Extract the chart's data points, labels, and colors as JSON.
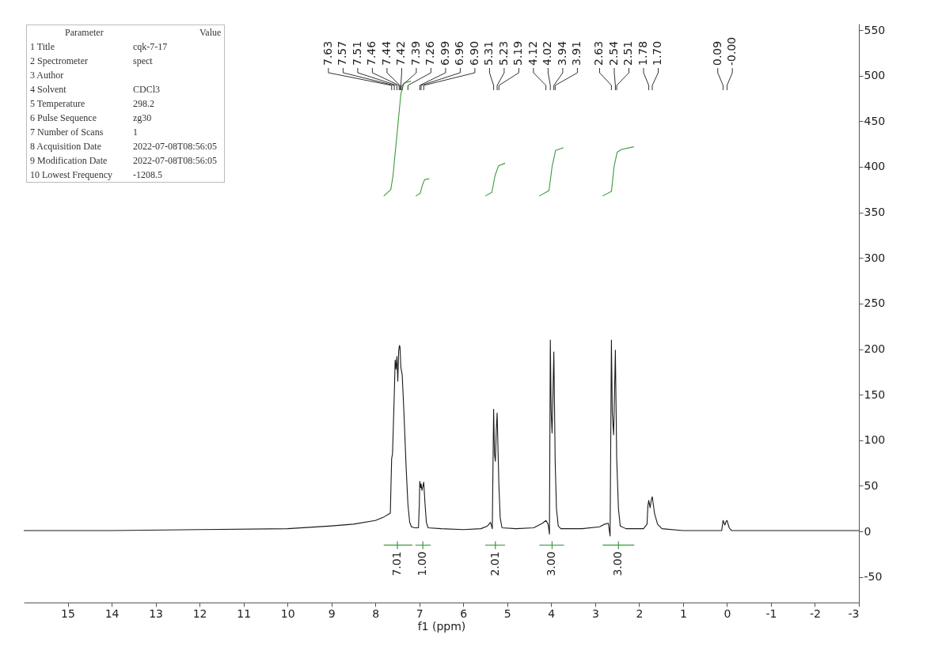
{
  "chart_data": {
    "type": "line",
    "xlabel": "f1 (ppm)",
    "xlim": [
      16,
      -3
    ],
    "xticks": [
      15,
      14,
      13,
      12,
      11,
      10,
      9,
      8,
      7,
      6,
      5,
      4,
      3,
      2,
      1,
      0,
      -1,
      -2,
      -3
    ],
    "ylim": [
      -78,
      557
    ],
    "yticks": [
      -50,
      0,
      50,
      100,
      150,
      200,
      250,
      300,
      350,
      400,
      450,
      500,
      550
    ],
    "grid": false,
    "line_style": "solid",
    "marker": "none",
    "series": [
      {
        "color": "#1a1a1a",
        "x": [
          16,
          14,
          12,
          10,
          9,
          8.5,
          8.0,
          7.8,
          7.7,
          7.66,
          7.64,
          7.63,
          7.61,
          7.57,
          7.55,
          7.53,
          7.51,
          7.49,
          7.47,
          7.46,
          7.45,
          7.44,
          7.42,
          7.39,
          7.35,
          7.3,
          7.26,
          7.22,
          7.18,
          7.1,
          7.02,
          7.0,
          6.99,
          6.97,
          6.96,
          6.94,
          6.9,
          6.87,
          6.84,
          6.8,
          6.5,
          6.0,
          5.6,
          5.45,
          5.38,
          5.34,
          5.31,
          5.29,
          5.27,
          5.25,
          5.23,
          5.21,
          5.19,
          5.16,
          5.12,
          4.8,
          4.4,
          4.2,
          4.12,
          4.07,
          4.04,
          4.02,
          4.0,
          3.98,
          3.96,
          3.94,
          3.92,
          3.91,
          3.88,
          3.84,
          3.78,
          3.3,
          2.9,
          2.78,
          2.7,
          2.66,
          2.63,
          2.61,
          2.58,
          2.56,
          2.54,
          2.52,
          2.51,
          2.47,
          2.43,
          2.3,
          1.9,
          1.82,
          1.8,
          1.78,
          1.75,
          1.72,
          1.7,
          1.65,
          1.58,
          1.48,
          1.0,
          0.5,
          0.12,
          0.09,
          0.05,
          0.02,
          0.0,
          -0.05,
          -0.1,
          -1,
          -3
        ],
        "values": [
          1,
          1,
          2,
          3,
          6,
          8,
          12,
          16,
          19,
          20,
          60,
          80,
          85,
          150,
          188,
          178,
          192,
          165,
          198,
          202,
          204,
          202,
          180,
          172,
          130,
          70,
          30,
          10,
          5,
          4,
          4,
          30,
          55,
          48,
          52,
          45,
          54,
          30,
          10,
          4,
          3,
          2,
          3,
          6,
          10,
          3,
          134,
          85,
          77,
          110,
          130,
          90,
          51,
          15,
          4,
          3,
          4,
          9,
          12,
          8,
          -3,
          210,
          130,
          108,
          150,
          197,
          120,
          77,
          25,
          6,
          3,
          3,
          5,
          8,
          9,
          -5,
          210,
          130,
          106,
          150,
          199,
          120,
          80,
          25,
          6,
          3,
          3,
          8,
          28,
          34,
          26,
          35,
          38,
          20,
          8,
          3,
          1,
          1,
          1,
          12,
          7,
          11,
          12,
          4,
          1,
          1,
          1
        ]
      },
      {
        "color": "#3c9a3c",
        "x": [
          7.81,
          7.65,
          7.6,
          7.5,
          7.42,
          7.35,
          7.19
        ],
        "values": [
          368,
          375,
          390,
          440,
          480,
          492,
          494
        ]
      },
      {
        "color": "#3c9a3c",
        "x": [
          7.08,
          6.98,
          6.93,
          6.88,
          6.77
        ],
        "values": [
          368,
          371,
          380,
          386,
          387
        ]
      },
      {
        "color": "#3c9a3c",
        "x": [
          5.5,
          5.35,
          5.28,
          5.2,
          5.05
        ],
        "values": [
          368,
          372,
          390,
          401,
          404
        ]
      },
      {
        "color": "#3c9a3c",
        "x": [
          4.27,
          4.05,
          3.98,
          3.9,
          3.72
        ],
        "values": [
          368,
          374,
          400,
          418,
          421
        ]
      },
      {
        "color": "#3c9a3c",
        "x": [
          2.83,
          2.63,
          2.57,
          2.5,
          2.4,
          2.12
        ],
        "values": [
          368,
          373,
          400,
          416,
          419,
          422
        ]
      },
      {
        "color": "#3c9a3c",
        "x": [
          7.81,
          7.16
        ],
        "values": [
          -15,
          -15
        ]
      },
      {
        "color": "#3c9a3c",
        "x": [
          7.09,
          6.74
        ],
        "values": [
          -15,
          -15
        ]
      },
      {
        "color": "#3c9a3c",
        "x": [
          5.5,
          5.05
        ],
        "values": [
          -15,
          -15
        ]
      },
      {
        "color": "#3c9a3c",
        "x": [
          4.27,
          3.71
        ],
        "values": [
          -15,
          -15
        ]
      },
      {
        "color": "#3c9a3c",
        "x": [
          2.83,
          2.11
        ],
        "values": [
          -15,
          -15
        ]
      }
    ],
    "annotations": [
      {
        "text": "7.01",
        "x": 7.5,
        "y": -15
      },
      {
        "text": "1.00",
        "x": 6.92,
        "y": -15
      },
      {
        "text": "2.01",
        "x": 5.27,
        "y": -15
      },
      {
        "text": "3.00",
        "x": 3.98,
        "y": -15
      },
      {
        "text": "3.00",
        "x": 2.47,
        "y": -15
      },
      {
        "text": "7.63",
        "x": 7.63
      },
      {
        "text": "7.57",
        "x": 7.57
      },
      {
        "text": "7.51",
        "x": 7.51
      },
      {
        "text": "7.46",
        "x": 7.46
      },
      {
        "text": "7.44",
        "x": 7.44
      },
      {
        "text": "7.42",
        "x": 7.42
      },
      {
        "text": "7.39",
        "x": 7.39
      },
      {
        "text": "7.26",
        "x": 7.26
      },
      {
        "text": "6.99",
        "x": 6.99
      },
      {
        "text": "6.96",
        "x": 6.96
      },
      {
        "text": "6.90",
        "x": 6.9
      },
      {
        "text": "5.31",
        "x": 5.31
      },
      {
        "text": "5.23",
        "x": 5.23
      },
      {
        "text": "5.19",
        "x": 5.19
      },
      {
        "text": "4.12",
        "x": 4.12
      },
      {
        "text": "4.02",
        "x": 4.02
      },
      {
        "text": "3.94",
        "x": 3.94
      },
      {
        "text": "3.91",
        "x": 3.91
      },
      {
        "text": "2.63",
        "x": 2.63
      },
      {
        "text": "2.54",
        "x": 2.54
      },
      {
        "text": "2.51",
        "x": 2.51
      },
      {
        "text": "1.78",
        "x": 1.78
      },
      {
        "text": "1.70",
        "x": 1.7
      },
      {
        "text": "0.09",
        "x": 0.09
      },
      {
        "text": "-0.00",
        "x": 0
      },
      "Parameter\tValue",
      "1 Title\tcqk-7-17",
      "2 Spectrometer\tspect",
      "3 Author",
      "4 Solvent\tCDCl3",
      "5 Temperature\t298.2",
      "6 Pulse Sequence\tzg30",
      "7 Number of Scans\t1",
      "8 Acquisition Date\t2022-07-08T08:56:05",
      "9 Modification Date\t2022-07-08T08:56:05",
      "10 Lowest Frequency\t-1208.5"
    ]
  }
}
